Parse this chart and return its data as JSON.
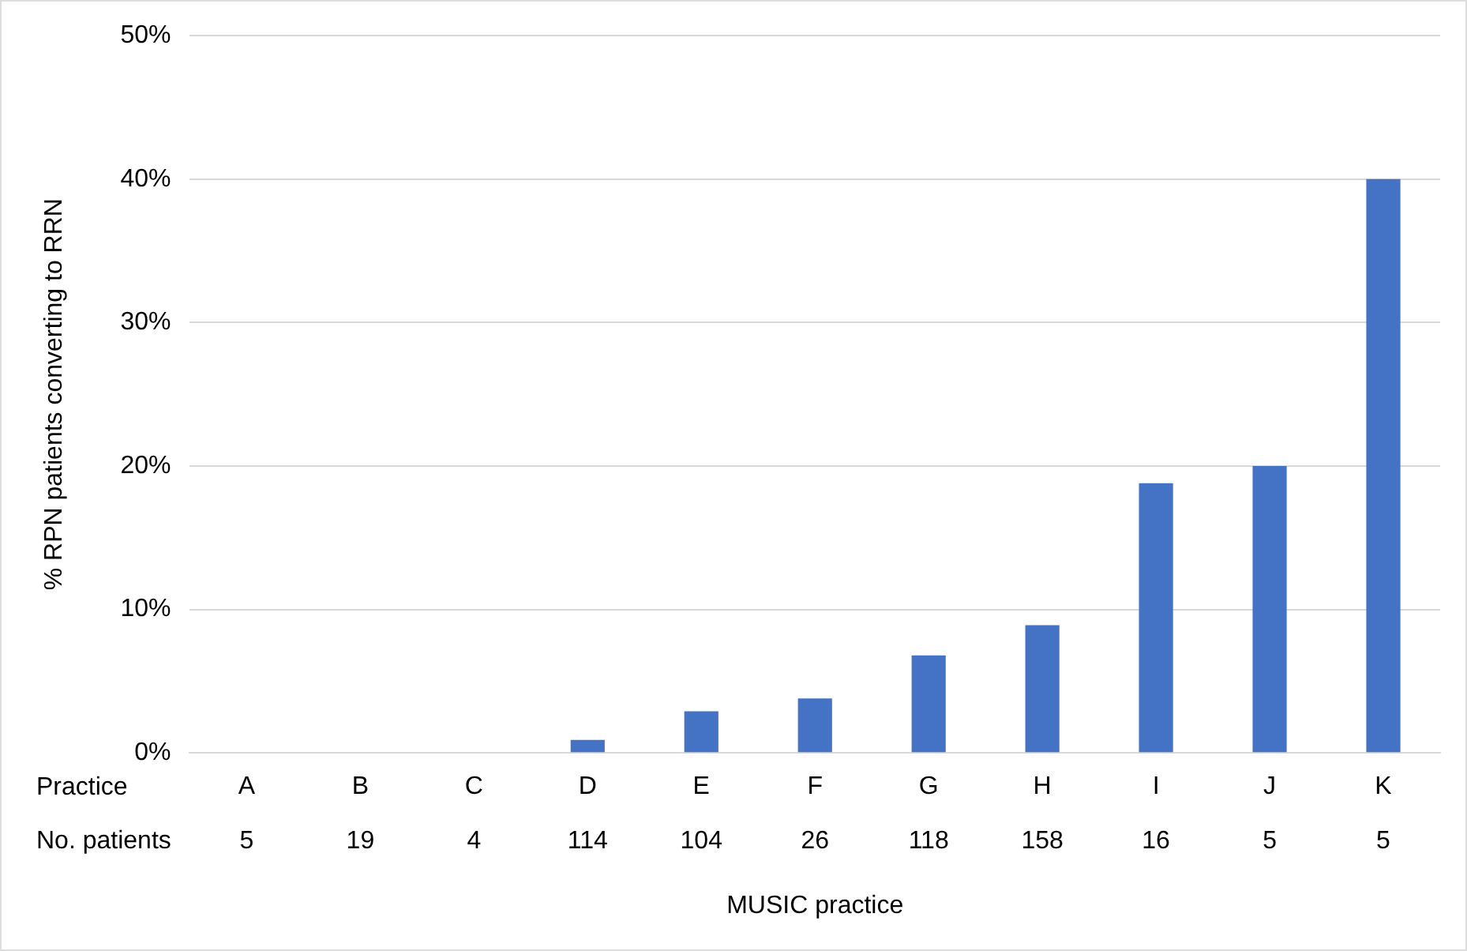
{
  "chart_data": {
    "type": "bar",
    "xlabel": "MUSIC practice",
    "ylabel": "% RPN patients converting to RRN",
    "categories": [
      "A",
      "B",
      "C",
      "D",
      "E",
      "F",
      "G",
      "H",
      "I",
      "J",
      "K"
    ],
    "values": [
      0,
      0,
      0,
      0.9,
      2.9,
      3.8,
      6.8,
      8.9,
      18.8,
      20,
      40
    ],
    "color": "#4472c4",
    "ylim": [
      0,
      50
    ],
    "yticks": [
      {
        "value": 0,
        "label": "0%"
      },
      {
        "value": 10,
        "label": "10%"
      },
      {
        "value": 20,
        "label": "20%"
      },
      {
        "value": 30,
        "label": "30%"
      },
      {
        "value": 40,
        "label": "40%"
      },
      {
        "value": 50,
        "label": "50%"
      }
    ],
    "grid": "y",
    "legend": false,
    "annotations": [
      "Practice",
      "No. patients",
      "5",
      "19",
      "4",
      "114",
      "104",
      "26",
      "118",
      "158",
      "16",
      "5",
      "5"
    ]
  }
}
